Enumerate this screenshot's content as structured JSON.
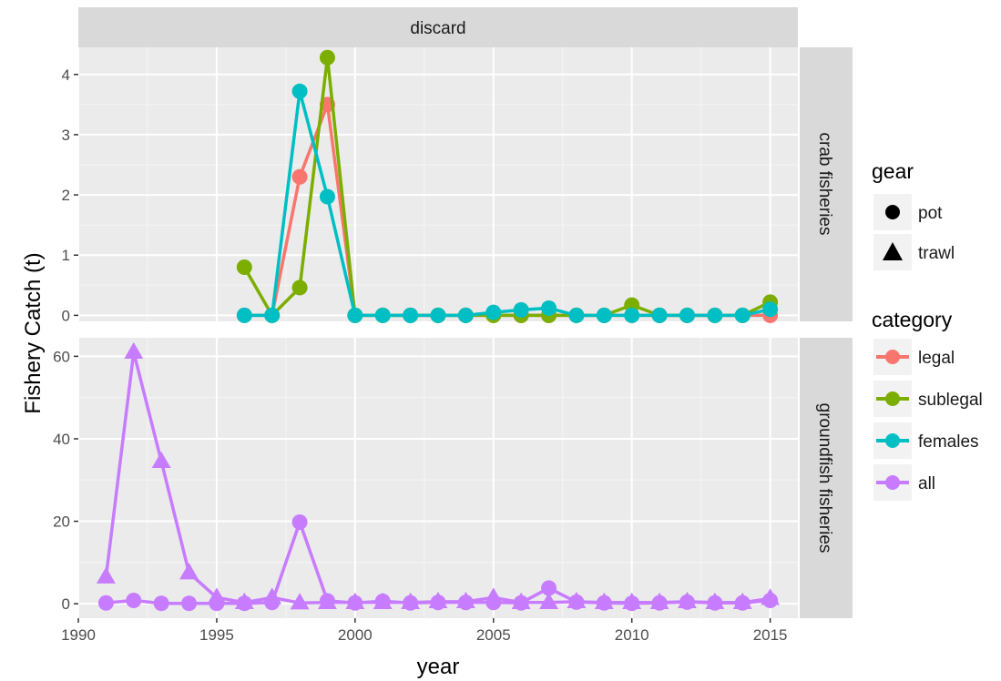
{
  "chart_data": {
    "type": "line",
    "facet_column_label": "discard",
    "xlabel": "year",
    "ylabel": "Fishery Catch (t)",
    "xlim": [
      1990,
      2016
    ],
    "x_ticks": [
      1990,
      1995,
      2000,
      2005,
      2010,
      2015
    ],
    "grid": true,
    "legend_position": "right",
    "panels": [
      {
        "label": "crab fisheries",
        "ylim": [
          -0.1,
          4.45
        ],
        "y_ticks": [
          0,
          1,
          2,
          3,
          4
        ],
        "series": [
          {
            "name": "legal",
            "category": "legal",
            "gear": "pot",
            "x": [
              1996,
              1997,
              1998,
              1999,
              2000,
              2001,
              2002,
              2003,
              2004,
              2005,
              2006,
              2007,
              2008,
              2009,
              2010,
              2011,
              2012,
              2013,
              2014,
              2015
            ],
            "y": [
              0,
              0,
              2.3,
              3.5,
              0,
              0,
              0,
              0,
              0,
              0,
              0,
              0,
              0,
              0,
              0,
              0,
              0,
              0,
              0,
              0
            ]
          },
          {
            "name": "sublegal",
            "category": "sublegal",
            "gear": "pot",
            "x": [
              1996,
              1997,
              1998,
              1999,
              2000,
              2001,
              2002,
              2003,
              2004,
              2005,
              2006,
              2007,
              2008,
              2009,
              2010,
              2011,
              2012,
              2013,
              2014,
              2015
            ],
            "y": [
              0.8,
              0,
              0.46,
              4.28,
              0,
              0,
              0,
              0,
              0,
              0,
              0,
              0,
              0,
              0,
              0.17,
              0,
              0,
              0,
              0,
              0.22
            ]
          },
          {
            "name": "females",
            "category": "females",
            "gear": "pot",
            "x": [
              1996,
              1997,
              1998,
              1999,
              2000,
              2001,
              2002,
              2003,
              2004,
              2005,
              2006,
              2007,
              2008,
              2009,
              2010,
              2011,
              2012,
              2013,
              2014,
              2015
            ],
            "y": [
              0,
              0,
              3.72,
              1.97,
              0,
              0,
              0,
              0,
              0,
              0.05,
              0.09,
              0.12,
              0,
              0,
              0,
              0,
              0,
              0,
              0,
              0.1
            ]
          }
        ]
      },
      {
        "label": "groundfish fisheries",
        "ylim": [
          -3.5,
          64.5
        ],
        "y_ticks": [
          0,
          20,
          40,
          60
        ],
        "series": [
          {
            "name": "all",
            "category": "all",
            "gear": "trawl",
            "x": [
              1991,
              1992,
              1993,
              1994,
              1995,
              1996,
              1997,
              1998,
              1999,
              2000,
              2001,
              2002,
              2003,
              2004,
              2005,
              2006,
              2007,
              2008,
              2009,
              2010,
              2011,
              2012,
              2013,
              2014,
              2015
            ],
            "y": [
              6.5,
              61,
              34.5,
              7.5,
              1.5,
              0.3,
              1.5,
              0.2,
              0.3,
              0.3,
              0.3,
              0.3,
              0.5,
              0.5,
              1.5,
              0.3,
              0.3,
              0.5,
              0.3,
              0.3,
              0.3,
              0.5,
              0.3,
              0.3,
              1.3
            ]
          },
          {
            "name": "all",
            "category": "all",
            "gear": "pot",
            "x": [
              1991,
              1992,
              1993,
              1994,
              1995,
              1996,
              1997,
              1998,
              1999,
              2000,
              2001,
              2002,
              2003,
              2004,
              2005,
              2006,
              2007,
              2008,
              2009,
              2010,
              2011,
              2012,
              2013,
              2014,
              2015
            ],
            "y": [
              0.2,
              0.8,
              0.1,
              0.1,
              0.1,
              0.1,
              0.3,
              19.8,
              0.7,
              0.2,
              0.6,
              0.2,
              0.3,
              0.3,
              0.3,
              0.2,
              3.8,
              0.4,
              0.2,
              0.1,
              0.2,
              0.4,
              0.2,
              0.2,
              0.8
            ]
          }
        ]
      }
    ],
    "legend": {
      "gear": {
        "title": "gear",
        "items": [
          {
            "label": "pot",
            "shape": "circle"
          },
          {
            "label": "trawl",
            "shape": "triangle"
          }
        ]
      },
      "category": {
        "title": "category",
        "items": [
          {
            "label": "legal",
            "color": "#F8766D"
          },
          {
            "label": "sublegal",
            "color": "#7CAE00"
          },
          {
            "label": "females",
            "color": "#00BFC4"
          },
          {
            "label": "all",
            "color": "#C77CFF"
          }
        ]
      }
    }
  }
}
